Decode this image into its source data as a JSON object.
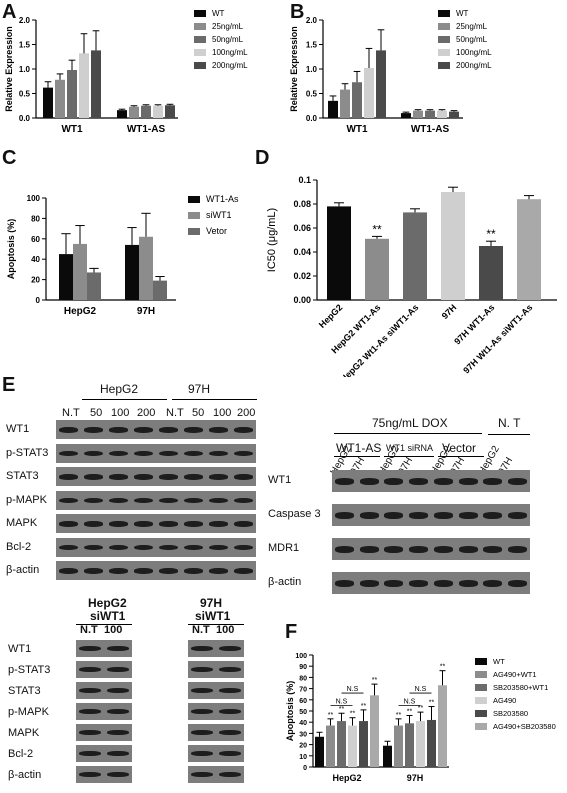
{
  "figure": {
    "panel_letters": [
      "A",
      "B",
      "C",
      "D",
      "E",
      "F"
    ],
    "colors": {
      "bar_black": "#0a0a0a",
      "bar_gray": "#8c8c8c",
      "bar_mid": "#6b6b6b",
      "bar_light": "#cfcfcf",
      "bar_dark": "#4a4a4a",
      "bar_pale": "#a9a9a9",
      "blot_bg": "#7d7d7d",
      "band": "#1d1d1d"
    }
  },
  "chart_data": [
    {
      "id": "A",
      "type": "bar",
      "ylabel": "Relative Expression",
      "xlabel": "",
      "ylim": [
        0,
        2
      ],
      "yticks": [
        "0.0",
        "0.5",
        "1.0",
        "1.5",
        "2.0"
      ],
      "categories": [
        "WT1",
        "WT1-AS"
      ],
      "series": [
        {
          "name": "WT",
          "values": [
            0.62,
            0.16
          ],
          "errors": [
            0.12,
            0.02
          ]
        },
        {
          "name": "25ng/mL",
          "values": [
            0.78,
            0.23
          ],
          "errors": [
            0.12,
            0.02
          ]
        },
        {
          "name": "50ng/mL",
          "values": [
            0.98,
            0.25
          ],
          "errors": [
            0.2,
            0.02
          ]
        },
        {
          "name": "100ng/mL",
          "values": [
            1.32,
            0.25
          ],
          "errors": [
            0.4,
            0.02
          ]
        },
        {
          "name": "200ng/mL",
          "values": [
            1.38,
            0.26
          ],
          "errors": [
            0.4,
            0.02
          ]
        }
      ]
    },
    {
      "id": "B",
      "type": "bar",
      "ylabel": "Relative Expression",
      "xlabel": "",
      "ylim": [
        0,
        2
      ],
      "yticks": [
        "0.0",
        "0.5",
        "1.0",
        "1.5",
        "2.0"
      ],
      "categories": [
        "WT1",
        "WT1-AS"
      ],
      "series": [
        {
          "name": "WT",
          "values": [
            0.35,
            0.1
          ],
          "errors": [
            0.1,
            0.02
          ]
        },
        {
          "name": "25ng/mL",
          "values": [
            0.58,
            0.15
          ],
          "errors": [
            0.12,
            0.02
          ]
        },
        {
          "name": "50ng/mL",
          "values": [
            0.73,
            0.15
          ],
          "errors": [
            0.22,
            0.02
          ]
        },
        {
          "name": "100ng/mL",
          "values": [
            1.02,
            0.15
          ],
          "errors": [
            0.4,
            0.02
          ]
        },
        {
          "name": "200ng/mL",
          "values": [
            1.38,
            0.13
          ],
          "errors": [
            0.42,
            0.02
          ]
        }
      ]
    },
    {
      "id": "C",
      "type": "bar",
      "ylabel": "Apoptosis (%)",
      "xlabel": "",
      "ylim": [
        0,
        100
      ],
      "yticks": [
        "0",
        "20",
        "40",
        "60",
        "80",
        "100"
      ],
      "categories": [
        "HepG2",
        "97H"
      ],
      "series": [
        {
          "name": "WT1-As",
          "values": [
            45,
            54
          ],
          "errors": [
            20,
            17
          ]
        },
        {
          "name": "siWT1",
          "values": [
            55,
            62
          ],
          "errors": [
            18,
            23
          ]
        },
        {
          "name": "Vetor",
          "values": [
            27,
            19
          ],
          "errors": [
            4,
            4
          ]
        }
      ]
    },
    {
      "id": "D",
      "type": "bar",
      "ylabel": "IC50 (μg/mL)",
      "xlabel": "",
      "ylim": [
        0,
        0.1
      ],
      "yticks": [
        "0.00",
        "0.02",
        "0.04",
        "0.06",
        "0.08",
        "0.1"
      ],
      "categories": [
        "HepG2",
        "HepG2 WT1-As",
        "HepG2 Wt1-As siWT1-As",
        "97H",
        "97H WT1-As",
        "97H Wt1-As siWT1-As"
      ],
      "values": [
        0.078,
        0.051,
        0.073,
        0.09,
        0.045,
        0.084
      ],
      "errors": [
        0.003,
        0.002,
        0.003,
        0.004,
        0.004,
        0.003
      ],
      "annotations": [
        "",
        "**",
        "",
        "",
        "**",
        ""
      ]
    },
    {
      "id": "F",
      "type": "bar",
      "ylabel": "Apoptosis (%)",
      "xlabel": "",
      "ylim": [
        0,
        100
      ],
      "yticks": [
        "0",
        "10",
        "20",
        "30",
        "40",
        "50",
        "60",
        "70",
        "80",
        "90",
        "100"
      ],
      "categories": [
        "HepG2",
        "97H"
      ],
      "series": [
        {
          "name": "WT",
          "values": [
            27,
            19
          ],
          "errors": [
            4,
            4
          ]
        },
        {
          "name": "AG490+WT1",
          "values": [
            37,
            37
          ],
          "errors": [
            6,
            6
          ]
        },
        {
          "name": "SB203580+WT1",
          "values": [
            41,
            39
          ],
          "errors": [
            7,
            7
          ]
        },
        {
          "name": "AG490",
          "values": [
            37,
            41
          ],
          "errors": [
            7,
            8
          ]
        },
        {
          "name": "SB203580",
          "values": [
            41,
            42
          ],
          "errors": [
            10,
            12
          ]
        },
        {
          "name": "AG490+SB203580",
          "values": [
            64,
            73
          ],
          "errors": [
            10,
            13
          ]
        }
      ],
      "stars": "**",
      "ns_label": "N.S"
    }
  ],
  "panelE": {
    "top_left": {
      "group_labels": [
        "HepG2",
        "97H"
      ],
      "lane_labels": [
        "N.T",
        "50",
        "100",
        "200",
        "N.T",
        "50",
        "100",
        "200"
      ],
      "rows": [
        "WT1",
        "p-STAT3",
        "STAT3",
        "p-MAPK",
        "MAPK",
        "Bcl-2",
        "β-actin"
      ]
    },
    "top_right": {
      "header": "75ng/mL DOX",
      "nt_label": "N. T",
      "groups": [
        "WT1-AS",
        "WT1 siRNA",
        "Vector"
      ],
      "lane_labels": [
        "HepG2",
        "97H",
        "HepG2",
        "97H",
        "HepG2",
        "97H",
        "HepG2",
        "97H"
      ],
      "rows": [
        "WT1",
        "Caspase 3",
        "MDR1",
        "β-actin"
      ]
    },
    "bottom": {
      "group1_line1": "HepG2",
      "group1_line2": "siWT1",
      "group2_line1": "97H",
      "group2_line2": "siWT1",
      "lane_labels": [
        "N.T",
        "100",
        "N.T",
        "100"
      ],
      "rows": [
        "WT1",
        "p-STAT3",
        "STAT3",
        "p-MAPK",
        "MAPK",
        "Bcl-2",
        "β-actin"
      ]
    }
  }
}
